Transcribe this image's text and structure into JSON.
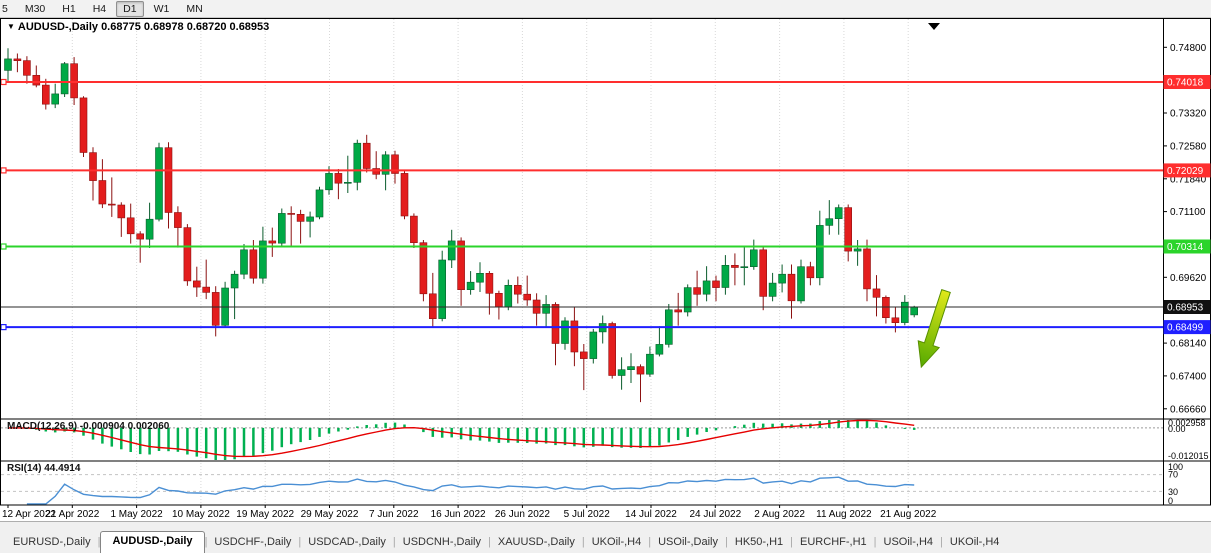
{
  "toolbar": {
    "timeframes": [
      "5",
      "M30",
      "H1",
      "H4",
      "D1",
      "W1",
      "MN"
    ],
    "active": "D1"
  },
  "price_chart": {
    "title_marker": "▼",
    "symbol": "AUDUSD-,Daily",
    "ohlc": "0.68775 0.68978 0.68720 0.68953",
    "axis_ticks": [
      "0.74800",
      "0.74060",
      "0.73320",
      "0.72580",
      "0.71840",
      "0.71100",
      "0.70360",
      "0.69620",
      "0.68880",
      "0.68140",
      "0.67400",
      "0.66660"
    ],
    "levels": [
      {
        "name": "resistance-line-upper",
        "label": "0.74018",
        "price": 0.74018,
        "color": "#ff2e2e",
        "line_width": 2,
        "handle": true
      },
      {
        "name": "resistance-line-lower",
        "label": "0.72029",
        "price": 0.72029,
        "color": "#ff2e2e",
        "line_width": 2,
        "handle": true
      },
      {
        "name": "support-line-green",
        "label": "0.70314",
        "price": 0.70314,
        "color": "#2bd42b",
        "line_width": 2,
        "handle": true
      },
      {
        "name": "support-line-blue",
        "label": "0.68499",
        "price": 0.68499,
        "color": "#1f1fff",
        "line_width": 2,
        "handle": true
      },
      {
        "name": "current-price-line",
        "label": "0.68953",
        "price": 0.68953,
        "color": "#2a2a2a",
        "line_width": 1,
        "handle": false,
        "box_color": "#111111"
      }
    ],
    "colors": {
      "bull": "#00a946",
      "bear": "#e31d1d",
      "bull_border": "#0a5c2c",
      "bear_border": "#8c1111"
    },
    "arrow": {
      "color_top": "#dfe81a",
      "color_bottom": "#55aa00"
    }
  },
  "chart_data": {
    "type": "candlestick",
    "title": "AUDUSD-,Daily",
    "symbol": "AUDUSD",
    "timeframe": "D1",
    "current_bar": {
      "open": 0.68775,
      "high": 0.68978,
      "low": 0.6872,
      "close": 0.68953
    },
    "y_axis_range": [
      0.6643,
      0.7546
    ],
    "x_labels": [
      "12 Apr 2022",
      "21 Apr 2022",
      "1 May 2022",
      "10 May 2022",
      "19 May 2022",
      "29 May 2022",
      "7 Jun 2022",
      "16 Jun 2022",
      "26 Jun 2022",
      "5 Jul 2022",
      "14 Jul 2022",
      "24 Jul 2022",
      "2 Aug 2022",
      "11 Aug 2022",
      "21 Aug 2022"
    ],
    "horizontal_levels": [
      0.74018,
      0.72029,
      0.70314,
      0.68499
    ],
    "current_price": 0.68953,
    "candles": [
      [
        0.7428,
        0.7478,
        0.7402,
        0.7454
      ],
      [
        0.7454,
        0.7466,
        0.7424,
        0.745
      ],
      [
        0.745,
        0.746,
        0.7398,
        0.7417
      ],
      [
        0.7417,
        0.7439,
        0.739,
        0.7395
      ],
      [
        0.7395,
        0.7409,
        0.734,
        0.7352
      ],
      [
        0.7352,
        0.7398,
        0.7343,
        0.7375
      ],
      [
        0.7375,
        0.7447,
        0.7368,
        0.7443
      ],
      [
        0.7443,
        0.7458,
        0.735,
        0.7366
      ],
      [
        0.7366,
        0.737,
        0.7233,
        0.7243
      ],
      [
        0.7243,
        0.7255,
        0.7135,
        0.718
      ],
      [
        0.718,
        0.7228,
        0.7118,
        0.7127
      ],
      [
        0.7127,
        0.7187,
        0.7098,
        0.7125
      ],
      [
        0.7125,
        0.7131,
        0.7053,
        0.7096
      ],
      [
        0.7096,
        0.7128,
        0.7038,
        0.706
      ],
      [
        0.706,
        0.7066,
        0.6995,
        0.7048
      ],
      [
        0.7048,
        0.713,
        0.7028,
        0.7093
      ],
      [
        0.7093,
        0.7265,
        0.7088,
        0.7254
      ],
      [
        0.7254,
        0.7266,
        0.7072,
        0.7108
      ],
      [
        0.7108,
        0.7122,
        0.7029,
        0.7074
      ],
      [
        0.7074,
        0.7082,
        0.6943,
        0.6954
      ],
      [
        0.6954,
        0.6986,
        0.6918,
        0.694
      ],
      [
        0.694,
        0.7002,
        0.6913,
        0.6928
      ],
      [
        0.6928,
        0.6942,
        0.6829,
        0.6854
      ],
      [
        0.6854,
        0.6952,
        0.6848,
        0.6938
      ],
      [
        0.6938,
        0.6977,
        0.6868,
        0.6969
      ],
      [
        0.6969,
        0.7037,
        0.6958,
        0.7024
      ],
      [
        0.7024,
        0.7046,
        0.6948,
        0.696
      ],
      [
        0.696,
        0.7076,
        0.6948,
        0.7044
      ],
      [
        0.7044,
        0.7074,
        0.7008,
        0.7039
      ],
      [
        0.7039,
        0.7117,
        0.7033,
        0.7106
      ],
      [
        0.7106,
        0.7122,
        0.7033,
        0.7104
      ],
      [
        0.7104,
        0.7114,
        0.7038,
        0.7088
      ],
      [
        0.7088,
        0.711,
        0.7052,
        0.7098
      ],
      [
        0.7098,
        0.7166,
        0.7093,
        0.7159
      ],
      [
        0.7159,
        0.7212,
        0.7148,
        0.7196
      ],
      [
        0.7196,
        0.7206,
        0.7138,
        0.7174
      ],
      [
        0.7174,
        0.7236,
        0.7152,
        0.7176
      ],
      [
        0.7176,
        0.7272,
        0.7158,
        0.7264
      ],
      [
        0.7264,
        0.7283,
        0.7198,
        0.7207
      ],
      [
        0.7207,
        0.7246,
        0.7183,
        0.7194
      ],
      [
        0.7194,
        0.7246,
        0.7158,
        0.7238
      ],
      [
        0.7238,
        0.7247,
        0.7173,
        0.7196
      ],
      [
        0.7196,
        0.7202,
        0.7093,
        0.71
      ],
      [
        0.71,
        0.7106,
        0.7028,
        0.704
      ],
      [
        0.704,
        0.7046,
        0.6908,
        0.6925
      ],
      [
        0.6925,
        0.6972,
        0.685,
        0.6869
      ],
      [
        0.6869,
        0.7022,
        0.6863,
        0.7001
      ],
      [
        0.7001,
        0.7069,
        0.6983,
        0.7044
      ],
      [
        0.7044,
        0.7052,
        0.6898,
        0.6934
      ],
      [
        0.6934,
        0.6976,
        0.6923,
        0.6951
      ],
      [
        0.6951,
        0.6996,
        0.6929,
        0.6971
      ],
      [
        0.6971,
        0.6976,
        0.6878,
        0.6926
      ],
      [
        0.6926,
        0.6932,
        0.6867,
        0.6895
      ],
      [
        0.6895,
        0.6957,
        0.6888,
        0.6944
      ],
      [
        0.6944,
        0.6964,
        0.6903,
        0.6924
      ],
      [
        0.6924,
        0.6966,
        0.6898,
        0.6911
      ],
      [
        0.6911,
        0.6926,
        0.6853,
        0.6881
      ],
      [
        0.6881,
        0.6922,
        0.6848,
        0.6901
      ],
      [
        0.6901,
        0.6906,
        0.6764,
        0.6813
      ],
      [
        0.6813,
        0.6872,
        0.6799,
        0.6864
      ],
      [
        0.6864,
        0.6896,
        0.6762,
        0.6794
      ],
      [
        0.6794,
        0.6812,
        0.6708,
        0.6779
      ],
      [
        0.6779,
        0.6846,
        0.6768,
        0.6839
      ],
      [
        0.6839,
        0.6876,
        0.6813,
        0.6858
      ],
      [
        0.6858,
        0.6862,
        0.6734,
        0.6741
      ],
      [
        0.6741,
        0.6782,
        0.6709,
        0.6754
      ],
      [
        0.6754,
        0.6791,
        0.6724,
        0.6761
      ],
      [
        0.6761,
        0.6766,
        0.6681,
        0.6744
      ],
      [
        0.6744,
        0.6806,
        0.6738,
        0.6789
      ],
      [
        0.6789,
        0.6852,
        0.6784,
        0.6811
      ],
      [
        0.6811,
        0.6902,
        0.6804,
        0.6889
      ],
      [
        0.6889,
        0.6927,
        0.6853,
        0.6884
      ],
      [
        0.6884,
        0.6946,
        0.6874,
        0.6939
      ],
      [
        0.6939,
        0.6977,
        0.6898,
        0.6924
      ],
      [
        0.6924,
        0.6987,
        0.6908,
        0.6954
      ],
      [
        0.6954,
        0.6966,
        0.6908,
        0.6939
      ],
      [
        0.6939,
        0.7012,
        0.6923,
        0.6989
      ],
      [
        0.6989,
        0.7016,
        0.6944,
        0.6984
      ],
      [
        0.6984,
        0.7032,
        0.6944,
        0.6986
      ],
      [
        0.6986,
        0.7047,
        0.6979,
        0.7024
      ],
      [
        0.7024,
        0.7031,
        0.6888,
        0.6919
      ],
      [
        0.6919,
        0.6972,
        0.6908,
        0.6949
      ],
      [
        0.6949,
        0.6991,
        0.6928,
        0.6969
      ],
      [
        0.6969,
        0.6991,
        0.6869,
        0.6909
      ],
      [
        0.6909,
        0.7002,
        0.6903,
        0.6986
      ],
      [
        0.6986,
        0.6997,
        0.6944,
        0.6961
      ],
      [
        0.6961,
        0.7112,
        0.6944,
        0.7079
      ],
      [
        0.7079,
        0.7136,
        0.7058,
        0.7094
      ],
      [
        0.7094,
        0.7126,
        0.7058,
        0.7119
      ],
      [
        0.7119,
        0.7126,
        0.6998,
        0.7021
      ],
      [
        0.7021,
        0.7046,
        0.6988,
        0.7026
      ],
      [
        0.7026,
        0.7047,
        0.6908,
        0.6936
      ],
      [
        0.6936,
        0.6967,
        0.6874,
        0.6917
      ],
      [
        0.6917,
        0.6921,
        0.6858,
        0.6871
      ],
      [
        0.6871,
        0.6896,
        0.6838,
        0.686
      ],
      [
        0.686,
        0.6922,
        0.6854,
        0.6906
      ],
      [
        0.68775,
        0.68978,
        0.6872,
        0.68953
      ]
    ],
    "indicators": {
      "macd": {
        "header": "MACD(12,26,9) -0.000904 0.002060",
        "params": [
          12,
          26,
          9
        ],
        "value_main": -0.000904,
        "value_signal": 0.00206,
        "axis": {
          "max": "0.002958",
          "zero": "0.00",
          "min": "-0.012015"
        },
        "histogram_color": "#00b050",
        "signal_color": "#e60000"
      },
      "rsi": {
        "header": "RSI(14) 44.4914",
        "period": 14,
        "value": 44.4914,
        "axis_labels": [
          "100",
          "70",
          "30",
          "0"
        ],
        "levels": [
          70,
          30
        ],
        "line_color": "#4a8fd4"
      }
    }
  },
  "tabs": {
    "active_index": 1,
    "items": [
      "EURUSD-,Daily",
      "AUDUSD-,Daily",
      "USDCHF-,Daily",
      "USDCAD-,Daily",
      "USDCNH-,Daily",
      "XAUUSD-,Daily",
      "UKOil-,H4",
      "USOil-,Daily",
      "HK50-,H1",
      "EURCHF-,H1",
      "USOil-,H4",
      "UKOil-,H4"
    ]
  }
}
